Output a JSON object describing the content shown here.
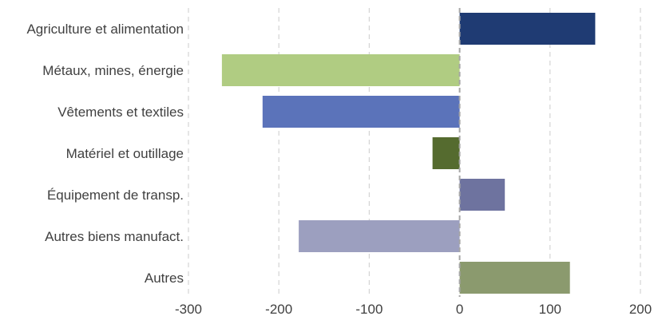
{
  "chart_data": {
    "type": "bar",
    "orientation": "horizontal",
    "title": "",
    "xlabel": "",
    "ylabel": "",
    "categories": [
      "Agriculture et alimentation",
      "Métaux, mines, énergie",
      "Vêtements et textiles",
      "Matériel et outillage",
      "Équipement de transp.",
      "Autres biens manufact.",
      "Autres"
    ],
    "values": [
      150,
      -263,
      -218,
      -30,
      50,
      -178,
      122
    ],
    "colors": [
      "#1f3b73",
      "#b0cc82",
      "#5b73ba",
      "#556b2f",
      "#6e739f",
      "#9c9fbf",
      "#8b9a6e"
    ],
    "xlim": [
      -300,
      200
    ],
    "xticks": [
      -300,
      -200,
      -100,
      0,
      100,
      200
    ],
    "xtick_labels": [
      "-300",
      "-200",
      "-100",
      "0",
      "100",
      "200"
    ],
    "grid": "vertical-dashed",
    "zero_line": "dashed"
  }
}
